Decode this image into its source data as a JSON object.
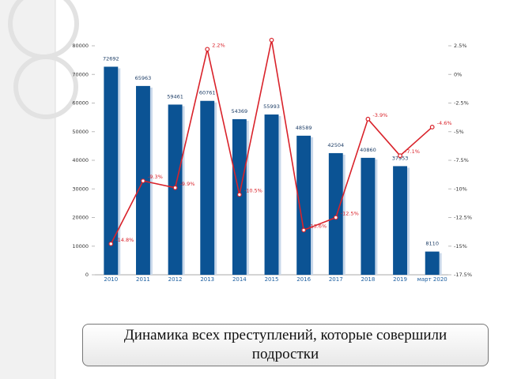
{
  "chart_data": {
    "type": "bar-line",
    "categories": [
      "2010",
      "2011",
      "2012",
      "2013",
      "2014",
      "2015",
      "2016",
      "2017",
      "2018",
      "2019",
      "март 2020"
    ],
    "series": [
      {
        "type": "bar",
        "color": "#0b5394",
        "values": [
          72692,
          65963,
          59461,
          60761,
          54369,
          55993,
          48589,
          42504,
          40860,
          37953,
          8110
        ]
      },
      {
        "type": "line",
        "axis": "y2",
        "color": "#d9222a",
        "values": [
          -14.8,
          -9.3,
          -9.9,
          2.2,
          -10.5,
          3.0,
          -13.6,
          -12.5,
          -3.9,
          -7.1,
          -4.6
        ],
        "value_labels": [
          "-14.8%",
          "-9.3%",
          "-9.9%",
          "2.2%",
          "-10.5%",
          null,
          "-13.6%",
          "-12.5%",
          "-3.9%",
          "-7.1%",
          "-4.6%"
        ]
      }
    ],
    "ylim": [
      0,
      80000
    ],
    "yticks": [
      0,
      10000,
      20000,
      30000,
      40000,
      50000,
      60000,
      70000,
      80000
    ],
    "y2lim": [
      -17.5,
      2.5
    ],
    "y2ticks": [
      {
        "value": 2.5,
        "label": "2.5%"
      },
      {
        "value": 0,
        "label": "0%"
      },
      {
        "value": -2.5,
        "label": "-2.5%"
      },
      {
        "value": -5,
        "label": "-5%"
      },
      {
        "value": -7.5,
        "label": "-7.5%"
      },
      {
        "value": -10,
        "label": "-10%"
      },
      {
        "value": -12.5,
        "label": "-12.5%"
      },
      {
        "value": -15,
        "label": "-15%"
      },
      {
        "value": -17.5,
        "label": "-17.5%"
      }
    ]
  },
  "caption": "Динамика всех преступлений, которые совершили подростки"
}
